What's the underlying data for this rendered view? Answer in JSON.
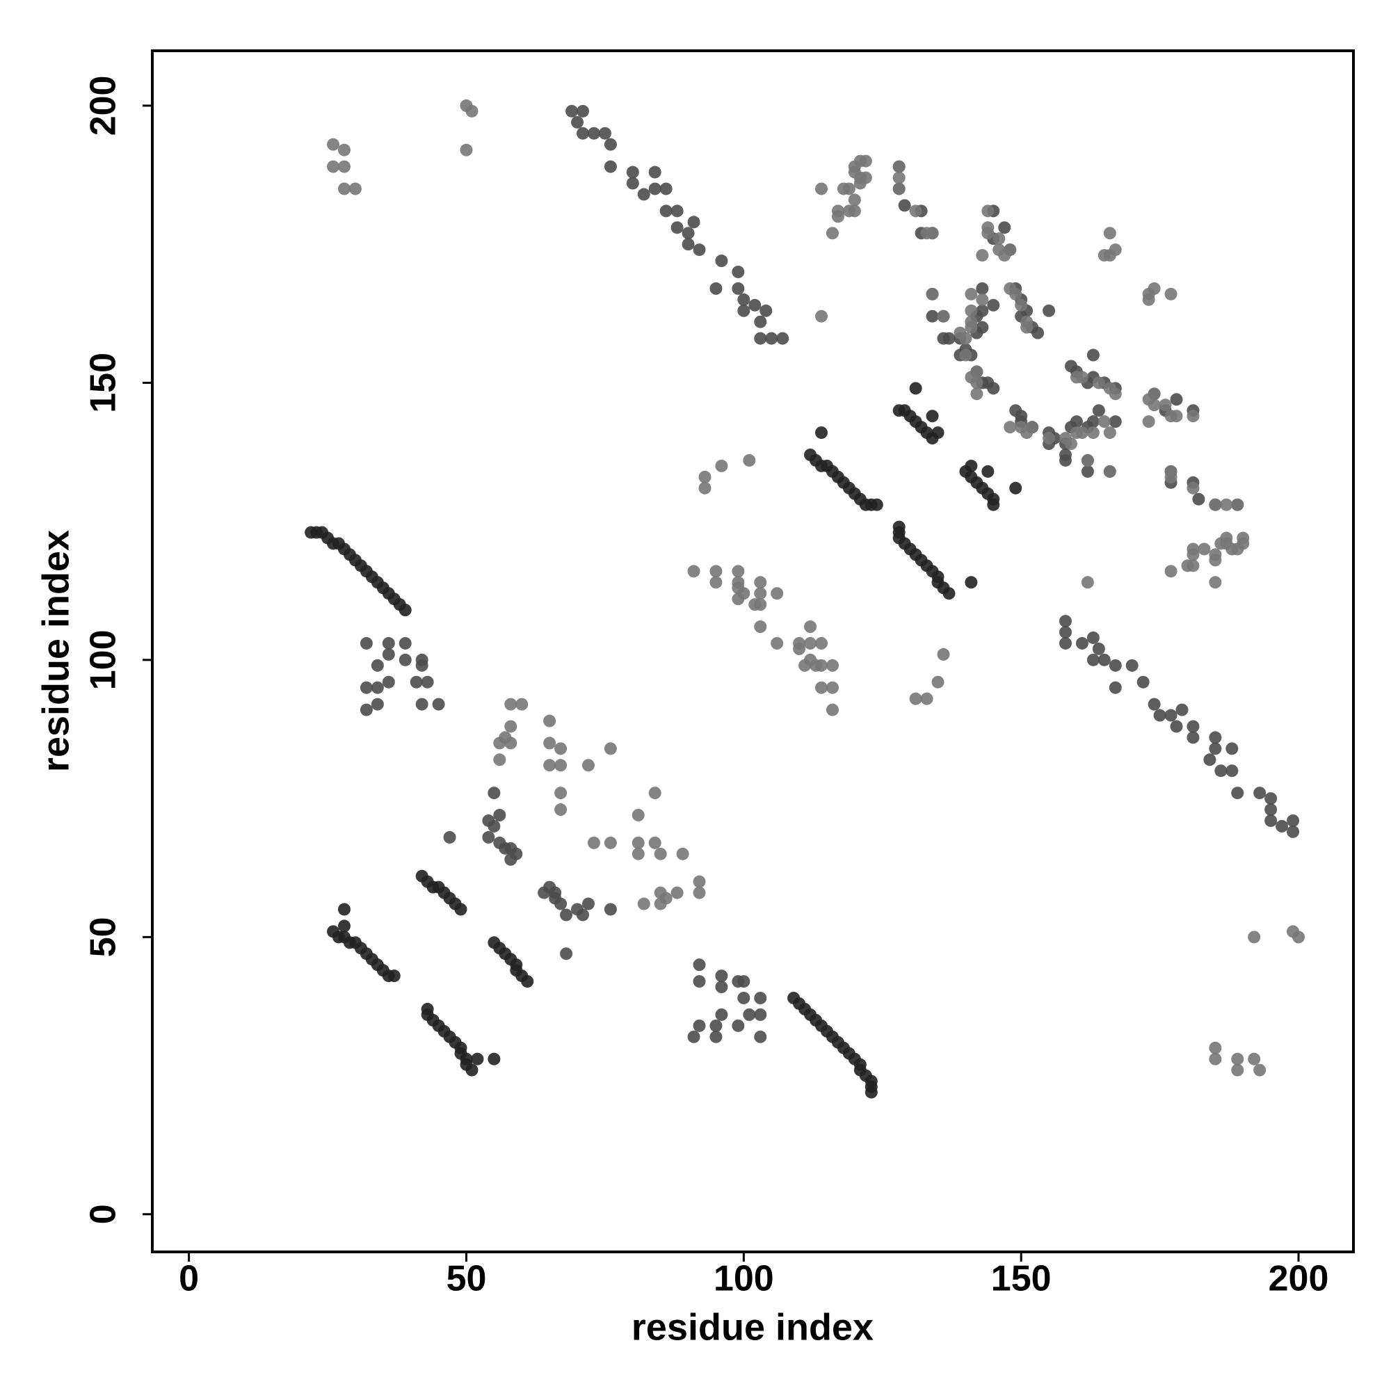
{
  "chart_data": {
    "type": "scatter",
    "xlabel": "residue index",
    "ylabel": "residue index",
    "xlim": [
      -6.6,
      209.9
    ],
    "ylim": [
      -6.8,
      209.9
    ],
    "xticks": [
      0,
      50,
      100,
      150,
      200
    ],
    "yticks": [
      0,
      50,
      100,
      150,
      200
    ],
    "series": [
      {
        "color": "#222222",
        "x": [
          22,
          23,
          24,
          25,
          26,
          27,
          28,
          29,
          30,
          31,
          32,
          33,
          34,
          35,
          36,
          37,
          38,
          39,
          26,
          27,
          28,
          28,
          29,
          30,
          31,
          32,
          33,
          34,
          35,
          36,
          37,
          28,
          42,
          43,
          44,
          45,
          46,
          47,
          48,
          49,
          112,
          113,
          114,
          115,
          116,
          117,
          118,
          119,
          120,
          121,
          122,
          123,
          124,
          114,
          128,
          129,
          130,
          131,
          132,
          133,
          134,
          135,
          131,
          134,
          123,
          123,
          123,
          122,
          121,
          121,
          120,
          119,
          118,
          117,
          116,
          115,
          114,
          113,
          112,
          111,
          110,
          109,
          51,
          50,
          50,
          52,
          49,
          49,
          48,
          47,
          46,
          45,
          44,
          43,
          43,
          55,
          61,
          60,
          59,
          59,
          58,
          57,
          56,
          55,
          137,
          136,
          135,
          135,
          134,
          133,
          132,
          131,
          130,
          129,
          128,
          128,
          128,
          141,
          145,
          145,
          144,
          143,
          142,
          141,
          140,
          141,
          149,
          144
        ],
        "values": [
          123,
          123,
          123,
          122,
          121,
          121,
          120,
          119,
          118,
          117,
          116,
          115,
          114,
          113,
          112,
          111,
          110,
          109,
          51,
          50,
          50,
          52,
          49,
          49,
          48,
          47,
          46,
          45,
          44,
          43,
          43,
          55,
          61,
          60,
          59,
          59,
          58,
          57,
          56,
          55,
          137,
          136,
          135,
          135,
          134,
          133,
          132,
          131,
          130,
          129,
          128,
          128,
          128,
          141,
          145,
          145,
          144,
          143,
          142,
          141,
          140,
          141,
          149,
          144,
          22,
          23,
          24,
          25,
          26,
          27,
          28,
          29,
          30,
          31,
          32,
          33,
          34,
          35,
          36,
          37,
          38,
          39,
          26,
          27,
          28,
          28,
          29,
          30,
          31,
          32,
          33,
          34,
          35,
          36,
          37,
          28,
          42,
          43,
          44,
          45,
          46,
          47,
          48,
          49,
          112,
          113,
          114,
          115,
          116,
          117,
          118,
          119,
          120,
          121,
          122,
          123,
          124,
          114,
          128,
          129,
          130,
          131,
          132,
          133,
          134,
          135,
          131,
          134
        ]
      },
      {
        "color": "#4d4d4d",
        "x": [
          69,
          71,
          70,
          71,
          73,
          75,
          76,
          76,
          80,
          84,
          80,
          84,
          86,
          82,
          86,
          88,
          88,
          90,
          91,
          90,
          92,
          96,
          95,
          99,
          99,
          100,
          102,
          100,
          103,
          104,
          103,
          105,
          107,
          32,
          36,
          34,
          36,
          32,
          34,
          32,
          34,
          36,
          39,
          39,
          42,
          42,
          41,
          43,
          42,
          45,
          54,
          55,
          56,
          54,
          56,
          57,
          58,
          59,
          58,
          55,
          47,
          128,
          128,
          129,
          132,
          132,
          134,
          134,
          134,
          136,
          136,
          139,
          140,
          141,
          142,
          143,
          142,
          143,
          142,
          143,
          144,
          145,
          145,
          145,
          147,
          148,
          149,
          150,
          150,
          151,
          152,
          153,
          155,
          137,
          139,
          145,
          143,
          199,
          199,
          197,
          195,
          195,
          195,
          193,
          189,
          188,
          188,
          186,
          185,
          185,
          184,
          181,
          181,
          178,
          177,
          179,
          175,
          174,
          172,
          167,
          170,
          167,
          165,
          164,
          163,
          161,
          163,
          158,
          158,
          158,
          103,
          103,
          99,
          101,
          95,
          95,
          91,
          92,
          96,
          103,
          100,
          100,
          99,
          96,
          96,
          92,
          92,
          71,
          70,
          72,
          68,
          67,
          66,
          66,
          65,
          64,
          76,
          68,
          189,
          185,
          182,
          181,
          177,
          177,
          166,
          162,
          162,
          158,
          158,
          156,
          155,
          162,
          163,
          159,
          160,
          152,
          150,
          150,
          149,
          181,
          176,
          178,
          174,
          167,
          165,
          162,
          163,
          160,
          159,
          163,
          158,
          155,
          164,
          167
        ],
        "values": [
          199,
          199,
          197,
          195,
          195,
          195,
          193,
          189,
          188,
          188,
          186,
          185,
          185,
          184,
          181,
          181,
          178,
          177,
          179,
          175,
          174,
          172,
          167,
          170,
          167,
          165,
          164,
          163,
          161,
          163,
          158,
          158,
          158,
          103,
          103,
          99,
          101,
          95,
          95,
          91,
          92,
          96,
          103,
          100,
          100,
          99,
          96,
          96,
          92,
          92,
          71,
          70,
          72,
          68,
          67,
          66,
          66,
          65,
          64,
          76,
          68,
          189,
          185,
          182,
          181,
          177,
          177,
          166,
          162,
          162,
          158,
          158,
          156,
          155,
          162,
          163,
          159,
          160,
          152,
          150,
          150,
          149,
          181,
          176,
          178,
          174,
          167,
          165,
          162,
          163,
          160,
          159,
          163,
          158,
          155,
          164,
          167,
          69,
          71,
          70,
          71,
          73,
          75,
          76,
          76,
          80,
          84,
          80,
          84,
          86,
          82,
          86,
          88,
          88,
          90,
          91,
          90,
          92,
          96,
          95,
          99,
          99,
          100,
          102,
          100,
          103,
          104,
          103,
          105,
          107,
          32,
          36,
          34,
          36,
          32,
          34,
          32,
          34,
          36,
          39,
          39,
          42,
          42,
          41,
          43,
          42,
          45,
          54,
          55,
          56,
          54,
          56,
          57,
          58,
          59,
          58,
          55,
          47,
          128,
          128,
          129,
          132,
          132,
          134,
          134,
          134,
          136,
          136,
          139,
          140,
          141,
          142,
          143,
          142,
          143,
          142,
          143,
          144,
          145,
          145,
          145,
          147,
          148,
          149,
          150,
          150,
          151,
          152,
          153,
          155,
          137,
          139,
          145,
          143
        ]
      },
      {
        "color": "#777777",
        "x": [
          26,
          28,
          26,
          28,
          28,
          30,
          50,
          50,
          51,
          58,
          60,
          56,
          58,
          56,
          58,
          57,
          65,
          65,
          67,
          67,
          65,
          67,
          67,
          72,
          76,
          116,
          117,
          119,
          119,
          120,
          122,
          122,
          114,
          117,
          120,
          120,
          118,
          121,
          121,
          120,
          121,
          128,
          128,
          128,
          131,
          134,
          133,
          140,
          139,
          141,
          141,
          136,
          141,
          150,
          143,
          141,
          134,
          151,
          151,
          149,
          148,
          142,
          142,
          141,
          142,
          140,
          143,
          146,
          144,
          147,
          148,
          144,
          144,
          165,
          166,
          167,
          166,
          146,
          93,
          96,
          101,
          114,
          93,
          91,
          95,
          95,
          99,
          99,
          103,
          103,
          103,
          106,
          100,
          102,
          103,
          99,
          99,
          193,
          192,
          189,
          189,
          185,
          185,
          192,
          200,
          199,
          92,
          92,
          85,
          88,
          82,
          85,
          86,
          89,
          85,
          84,
          81,
          81,
          76,
          73,
          81,
          84,
          177,
          181,
          181,
          185,
          189,
          190,
          187,
          185,
          180,
          181,
          183,
          185,
          186,
          187,
          188,
          190,
          185,
          187,
          189,
          181,
          177,
          177,
          158,
          159,
          160,
          161,
          162,
          163,
          164,
          165,
          166,
          166,
          160,
          161,
          166,
          167,
          148,
          150,
          151,
          152,
          155,
          173,
          174,
          177,
          173,
          174,
          178,
          181,
          173,
          177,
          174,
          173,
          176,
          133,
          135,
          136,
          162,
          131,
          116,
          116,
          114,
          114,
          113,
          114,
          112,
          110,
          112,
          112,
          110,
          106,
          111,
          116
        ],
        "values": [
          193,
          192,
          189,
          189,
          185,
          185,
          192,
          200,
          199,
          92,
          92,
          85,
          88,
          82,
          85,
          86,
          89,
          85,
          84,
          81,
          81,
          76,
          73,
          81,
          84,
          177,
          181,
          181,
          185,
          189,
          190,
          187,
          185,
          180,
          181,
          183,
          185,
          186,
          187,
          188,
          190,
          185,
          187,
          189,
          181,
          177,
          177,
          158,
          159,
          160,
          161,
          162,
          163,
          164,
          165,
          166,
          166,
          160,
          161,
          166,
          167,
          148,
          150,
          151,
          152,
          155,
          173,
          174,
          177,
          173,
          174,
          178,
          181,
          173,
          177,
          174,
          173,
          176,
          133,
          135,
          136,
          162,
          131,
          116,
          116,
          114,
          114,
          113,
          114,
          112,
          110,
          112,
          112,
          110,
          106,
          111,
          116,
          26,
          28,
          26,
          28,
          28,
          30,
          50,
          50,
          51,
          58,
          60,
          56,
          58,
          56,
          58,
          57,
          65,
          65,
          67,
          67,
          65,
          67,
          67,
          72,
          76,
          116,
          117,
          119,
          119,
          120,
          122,
          122,
          114,
          117,
          120,
          120,
          118,
          121,
          121,
          120,
          121,
          128,
          128,
          128,
          131,
          134,
          133,
          140,
          139,
          141,
          141,
          136,
          141,
          150,
          143,
          141,
          134,
          151,
          151,
          149,
          148,
          142,
          142,
          141,
          142,
          140,
          143,
          146,
          144,
          147,
          148,
          144,
          144,
          165,
          166,
          167,
          166,
          146,
          93,
          96,
          101,
          114,
          93,
          91,
          95,
          95,
          99,
          99,
          103,
          103,
          103,
          106,
          100,
          102,
          103,
          99,
          99
        ]
      }
    ]
  }
}
